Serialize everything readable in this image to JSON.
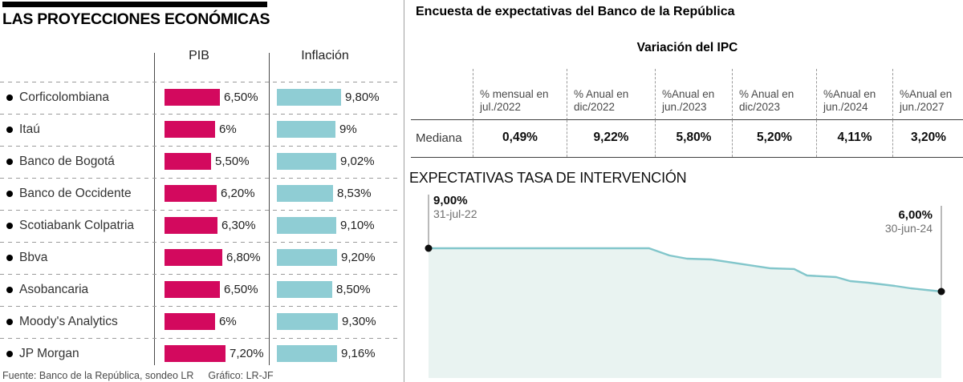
{
  "colors": {
    "pib_bar": "#d3095e",
    "inflacion_bar": "#8fcdd4",
    "rate_line": "#82c6cb",
    "rate_fill": "#e9f3f1",
    "marker": "#0d0d0d",
    "leader_line": "#8c8c8c"
  },
  "right_panel_heading": "Encuesta de expectativas del Banco de la República",
  "footer": {
    "fuente": "Fuente:  Banco de la República, sondeo LR",
    "grafico": "Gráfico: LR-JF"
  },
  "chart_data": [
    {
      "type": "bar",
      "title": "LAS PROYECCIONES ECONÓMICAS",
      "categories": [
        "Corficolombiana",
        "Itaú",
        "Banco de Bogotá",
        "Banco de Occidente",
        "Scotiabank Colpatria",
        "Bbva",
        "Asobancaria",
        "Moody's Analytics",
        "JP Morgan"
      ],
      "series": [
        {
          "name": "PIB",
          "values": [
            6.5,
            6,
            5.5,
            6.2,
            6.3,
            6.8,
            6.5,
            6,
            7.2
          ],
          "labels": [
            "6,50%",
            "6%",
            "5,50%",
            "6,20%",
            "6,30%",
            "6,80%",
            "6,50%",
            "6%",
            "7,20%"
          ]
        },
        {
          "name": "Inflación",
          "values": [
            9.8,
            9,
            9.02,
            8.53,
            9.1,
            9.2,
            8.5,
            9.3,
            9.16
          ],
          "labels": [
            "9,80%",
            "9%",
            "9,02%",
            "8,53%",
            "9,10%",
            "9,20%",
            "8,50%",
            "9,30%",
            "9,16%"
          ]
        }
      ],
      "unit": "%"
    },
    {
      "type": "table",
      "title": "Variación del IPC",
      "row_label": "Mediana",
      "columns": [
        "% mensual en\njul./2022",
        "% Anual en\ndic/2022",
        "%Anual en\njun./2023",
        "% Anual en\ndic/2023",
        "%Anual en\njun./2024",
        "%Anual en\njun./2027"
      ],
      "values": [
        "0,49%",
        "9,22%",
        "5,80%",
        "5,20%",
        "4,11%",
        "3,20%"
      ]
    },
    {
      "type": "area",
      "title": "EXPECTATIVAS TASA DE INTERVENCIÓN",
      "ylim": [
        0,
        9
      ],
      "start": {
        "label": "9,00%",
        "date": "31-jul-22",
        "value": 9.0
      },
      "end": {
        "label": "6,00%",
        "date": "30-jun-24",
        "value": 6.0
      },
      "points": [
        [
          0,
          9.0
        ],
        [
          0.43,
          9.0
        ],
        [
          0.47,
          8.5
        ],
        [
          0.504,
          8.28
        ],
        [
          0.552,
          8.22
        ],
        [
          0.625,
          7.83
        ],
        [
          0.667,
          7.61
        ],
        [
          0.713,
          7.56
        ],
        [
          0.738,
          7.11
        ],
        [
          0.795,
          7.0
        ],
        [
          0.822,
          6.72
        ],
        [
          0.857,
          6.61
        ],
        [
          0.909,
          6.39
        ],
        [
          0.94,
          6.22
        ],
        [
          1,
          6.0
        ]
      ]
    }
  ]
}
